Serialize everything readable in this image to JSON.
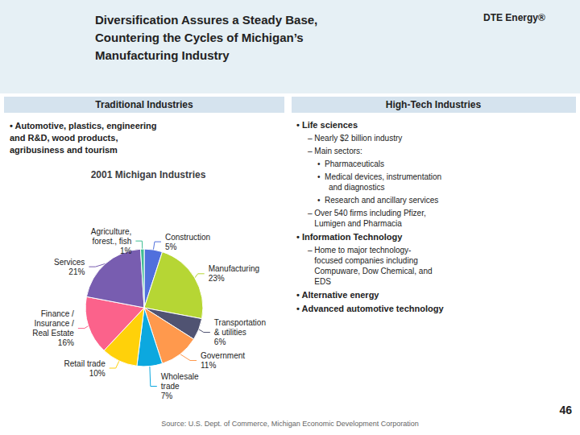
{
  "chart_data": {
    "type": "pie",
    "title": "2001 Michigan Industries",
    "categories": [
      "Construction",
      "Manufacturing",
      "Transportation\n& utilities",
      "Government",
      "Wholesale\ntrade",
      "Retail trade",
      "Finance /\nInsurance /\nReal Estate",
      "Services",
      "Agriculture,\nforest., fish"
    ],
    "values": [
      5,
      23,
      6,
      11,
      7,
      10,
      16,
      21,
      1
    ],
    "value_labels": [
      "5%",
      "23%",
      "6%",
      "11%",
      "7%",
      "10%",
      "16%",
      "21%",
      "1%"
    ],
    "data_labels": true,
    "annotations": [
      "Diversification Assures a Steady Base,",
      "Countering the Cycles of Michigan’s",
      "Manufacturing Industry",
      "DTE Energy®",
      "Traditional Industries",
      "High-Tech Industries",
      "• Automotive, plastics, engineering\nand R&D, wood products,\nagribusiness and tourism",
      "• Life sciences",
      "– Nearly $2 billion industry",
      "– Main sectors:",
      "•  Pharmaceuticals",
      "•  Medical devices, instrumentation\n     and diagnostics",
      "•  Research and ancillary services",
      "– Over 540 firms including Pfizer,\n   Lumigen and Pharmacia",
      "• Information Technology",
      "– Home to major technology-\n   focused companies including\n   Compuware, Dow Chemical, and\n   EDS",
      "• Alternative energy",
      "• Advanced automotive technology",
      "Source: U.S. Dept. of Commerce, Michigan Economic Development Corporation",
      "46"
    ]
  }
}
